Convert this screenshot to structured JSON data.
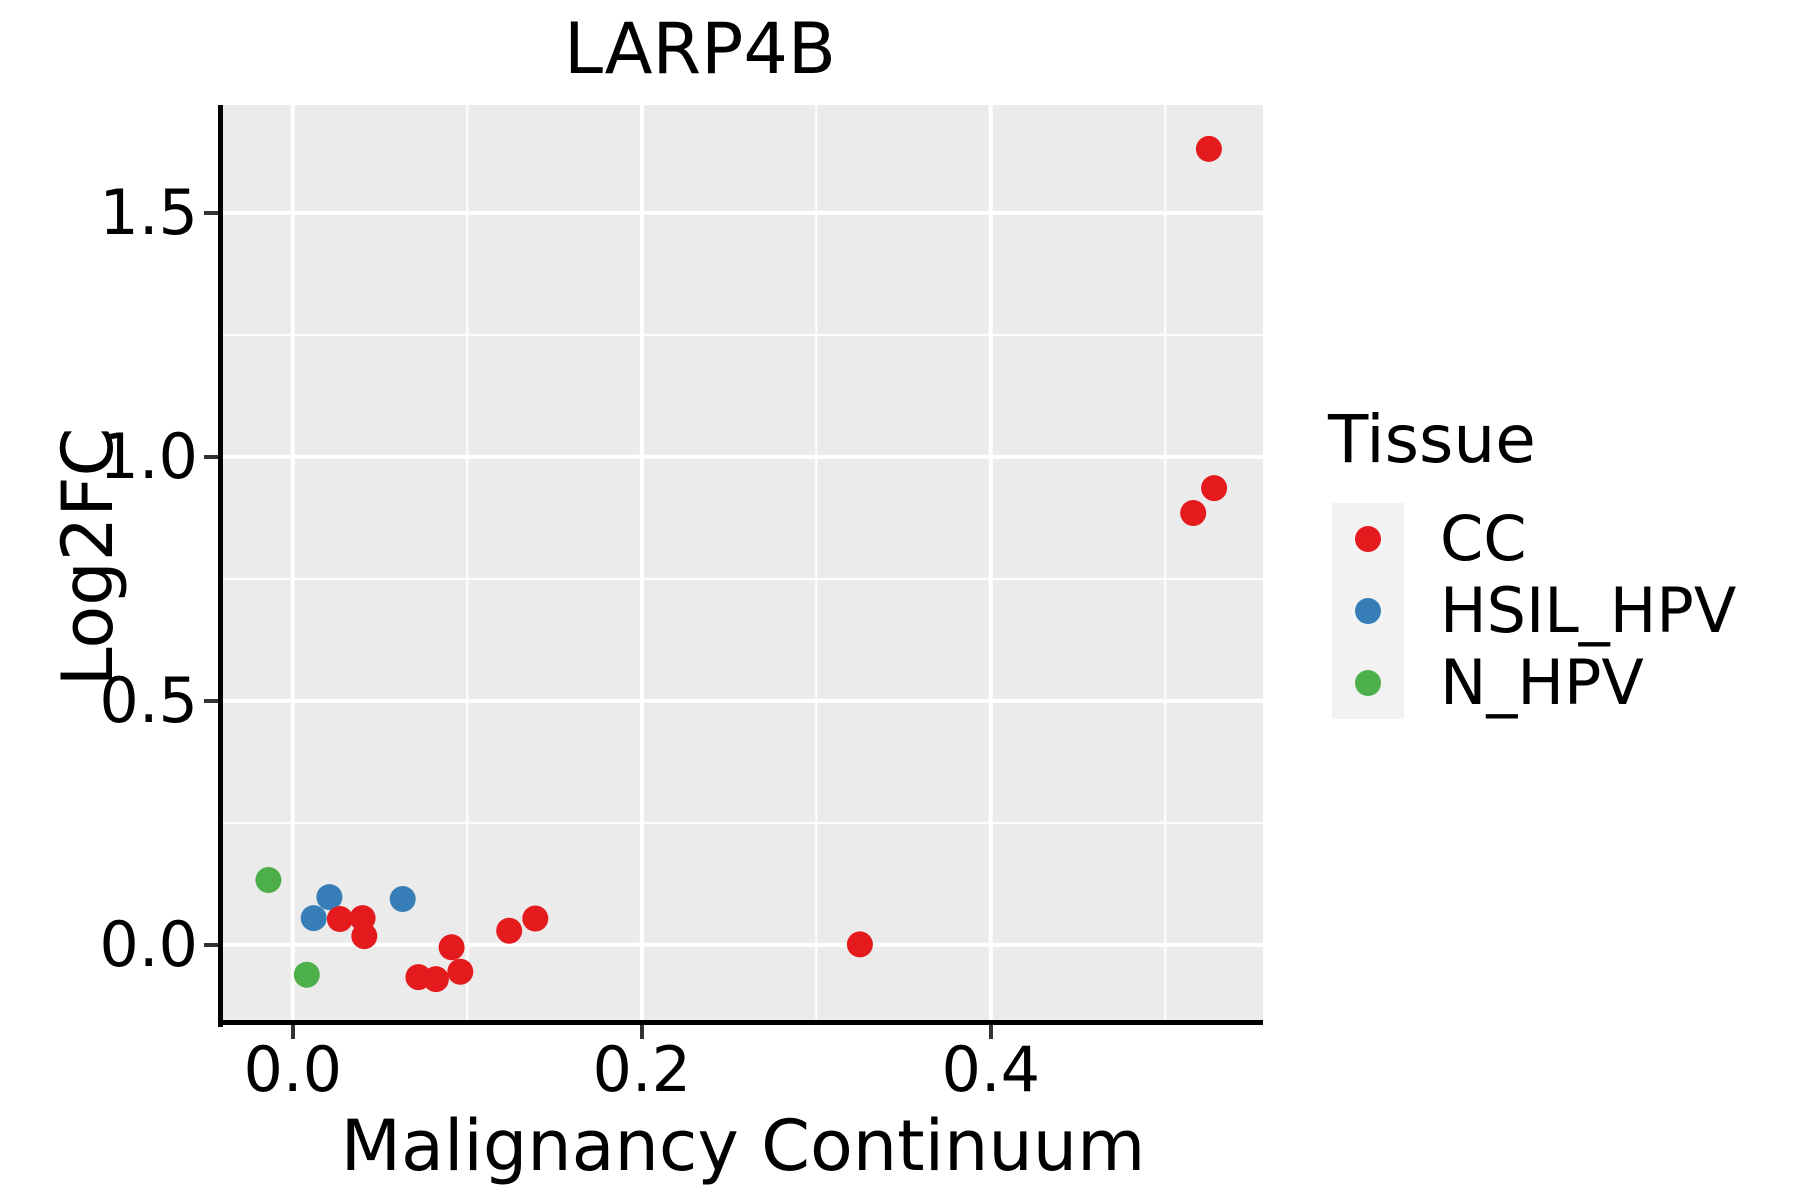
{
  "legend": {
    "title": "Tissue",
    "items": [
      {
        "label": "CC",
        "color": "#E41A1C",
        "icon": "dot-icon"
      },
      {
        "label": "HSIL_HPV",
        "color": "#377EB8",
        "icon": "dot-icon"
      },
      {
        "label": "N_HPV",
        "color": "#4DAF4A",
        "icon": "dot-icon"
      }
    ],
    "key_background": "#F2F2F2"
  },
  "chart_data": {
    "type": "scatter",
    "title": "LARP4B",
    "xlabel": "Malignancy Continuum",
    "ylabel": "Log2FC",
    "xlim": [
      -0.04,
      0.556
    ],
    "ylim": [
      -0.158,
      1.721
    ],
    "x_major_ticks": [
      0.0,
      0.2,
      0.4
    ],
    "x_tick_labels": [
      "0.0",
      "0.2",
      "0.4"
    ],
    "x_minor_ticks": [
      0.1,
      0.3,
      0.5
    ],
    "y_major_ticks": [
      0.0,
      0.5,
      1.0,
      1.5
    ],
    "y_tick_labels": [
      "0.0",
      "0.5",
      "1.0",
      "1.5"
    ],
    "y_minor_ticks": [
      0.25,
      0.75,
      1.25
    ],
    "grid": "on",
    "legend_position": "right",
    "series": [
      {
        "name": "N_HPV",
        "color": "#4DAF4A",
        "points": [
          [
            -0.014,
            0.133
          ],
          [
            0.008,
            -0.061
          ]
        ]
      },
      {
        "name": "HSIL_HPV",
        "color": "#377EB8",
        "points": [
          [
            0.012,
            0.055
          ],
          [
            0.021,
            0.098
          ],
          [
            0.063,
            0.094
          ]
        ]
      },
      {
        "name": "CC",
        "color": "#E41A1C",
        "points": [
          [
            0.027,
            0.053
          ],
          [
            0.04,
            0.055
          ],
          [
            0.041,
            0.018
          ],
          [
            0.072,
            -0.066
          ],
          [
            0.082,
            -0.07
          ],
          [
            0.091,
            -0.005
          ],
          [
            0.096,
            -0.055
          ],
          [
            0.124,
            0.029
          ],
          [
            0.139,
            0.054
          ],
          [
            0.325,
            0.001
          ],
          [
            0.516,
            0.885
          ],
          [
            0.528,
            0.936
          ],
          [
            0.525,
            1.631
          ]
        ]
      }
    ],
    "styles": {
      "panel_background": "#EBEBEB",
      "grid_color": "#FFFFFF",
      "major_grid_width": 4,
      "minor_grid_width": 2,
      "point_radius": 13,
      "axis_color": "#000000",
      "tick_color": "#333333"
    }
  }
}
